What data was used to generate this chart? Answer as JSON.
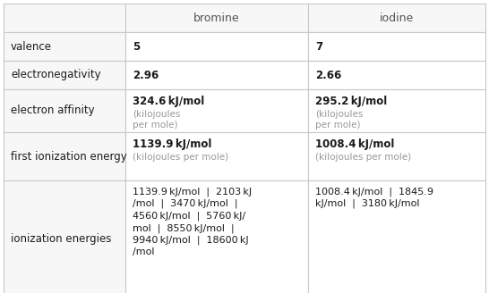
{
  "col_labels": [
    "bromine",
    "iodine"
  ],
  "row_labels": [
    "valence",
    "electronegativity",
    "electron affinity",
    "first ionization energy",
    "ionization energies"
  ],
  "cells": {
    "bromine": {
      "valence": {
        "bold": "5",
        "normal": ""
      },
      "electronegativity": {
        "bold": "2.96",
        "normal": ""
      },
      "electron affinity": {
        "bold": "324.6 kJ/mol",
        "normal": "(kilojoules\nper mole)"
      },
      "first ionization energy": {
        "bold": "1139.9 kJ/mol",
        "normal": "(kilojoules per mole)"
      },
      "ionization energies": {
        "bold": "1139.9 kJ/mol  |  2103 kJ\n/mol  |  3470 kJ/mol  |\n4560 kJ/mol  |  5760 kJ/\nmol  |  8550 kJ/mol  |\n9940 kJ/mol  |  18600 kJ\n/mol",
        "normal": ""
      }
    },
    "iodine": {
      "valence": {
        "bold": "7",
        "normal": ""
      },
      "electronegativity": {
        "bold": "2.66",
        "normal": ""
      },
      "electron affinity": {
        "bold": "295.2 kJ/mol",
        "normal": "(kilojoules\nper mole)"
      },
      "first ionization energy": {
        "bold": "1008.4 kJ/mol",
        "normal": "(kilojoules per mole)"
      },
      "ionization energies": {
        "bold": "1008.4 kJ/mol  |  1845.9\nkJ/mol  |  3180 kJ/mol",
        "normal": ""
      }
    }
  },
  "bg_color": "#ffffff",
  "label_bg": "#f7f7f7",
  "border_color": "#c8c8c8",
  "text_color": "#1a1a1a",
  "subtext_color": "#999999",
  "header_color": "#555555"
}
